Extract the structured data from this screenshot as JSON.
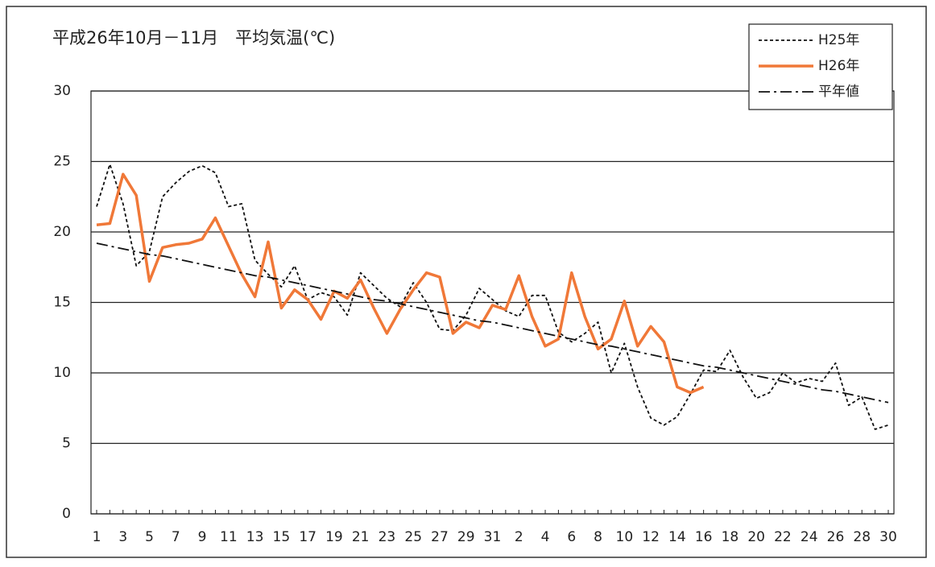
{
  "chart_data": {
    "type": "line",
    "title": "平成26年10月－11月　平均気温(℃)",
    "categories": [
      "1",
      null,
      "3",
      null,
      "5",
      null,
      "7",
      null,
      "9",
      null,
      "11",
      null,
      "13",
      null,
      "15",
      null,
      "17",
      null,
      "19",
      null,
      "21",
      null,
      "23",
      null,
      "25",
      null,
      "27",
      null,
      "29",
      null,
      "31",
      null,
      "2",
      null,
      "4",
      null,
      "6",
      null,
      "8",
      null,
      "10",
      null,
      "12",
      null,
      "14",
      null,
      "16",
      null,
      "18",
      null,
      "20",
      null,
      "22",
      null,
      "24",
      null,
      "26",
      null,
      "28",
      null,
      "30"
    ],
    "series": [
      {
        "name": "H25年",
        "color": "#111111",
        "dash": "dashed",
        "values": [
          21.8,
          24.8,
          22.0,
          17.6,
          18.6,
          22.5,
          23.5,
          24.3,
          24.7,
          24.2,
          21.8,
          22.0,
          18.0,
          17.0,
          16.1,
          17.6,
          15.2,
          15.7,
          15.4,
          14.1,
          17.1,
          16.2,
          15.3,
          14.7,
          16.4,
          15.0,
          13.1,
          13.0,
          14.1,
          16.0,
          15.2,
          14.4,
          14.0,
          15.5,
          15.5,
          12.9,
          12.2,
          12.8,
          13.6,
          10.0,
          12.1,
          9.0,
          6.8,
          6.3,
          6.9,
          8.5,
          10.2,
          10.1,
          11.6,
          9.7,
          8.2,
          8.6,
          10.0,
          9.3,
          9.6,
          9.4,
          10.7,
          7.7,
          8.3,
          6.0,
          6.3
        ]
      },
      {
        "name": "H26年",
        "color": "#f07838",
        "dash": "solid",
        "values": [
          20.5,
          20.6,
          24.1,
          22.6,
          16.5,
          18.9,
          19.1,
          19.2,
          19.5,
          21.0,
          19.0,
          17.0,
          15.4,
          19.3,
          14.6,
          15.9,
          15.2,
          13.8,
          15.8,
          15.3,
          16.6,
          14.6,
          12.8,
          14.5,
          15.9,
          17.1,
          16.8,
          12.8,
          13.6,
          13.2,
          14.8,
          14.5,
          16.9,
          14.0,
          11.9,
          12.4,
          17.1,
          14.0,
          11.7,
          12.4,
          15.1,
          11.9,
          13.3,
          12.2,
          9.0,
          8.6,
          9.0,
          null,
          null,
          null,
          null,
          null,
          null,
          null,
          null,
          null,
          null,
          null,
          null,
          null,
          null
        ]
      },
      {
        "name": "平年値",
        "color": "#111111",
        "dash": "dashdot",
        "values": [
          19.2,
          19.0,
          18.8,
          18.6,
          18.4,
          18.3,
          18.1,
          17.9,
          17.7,
          17.5,
          17.3,
          17.1,
          16.9,
          16.8,
          16.6,
          16.4,
          16.2,
          16.0,
          15.8,
          15.6,
          15.4,
          15.2,
          15.1,
          14.9,
          14.7,
          14.5,
          14.3,
          14.1,
          13.9,
          13.7,
          13.6,
          13.4,
          13.2,
          13.0,
          12.8,
          12.6,
          12.4,
          12.2,
          12.0,
          11.9,
          11.7,
          11.5,
          11.3,
          11.1,
          10.9,
          10.7,
          10.5,
          10.4,
          10.2,
          10.0,
          9.8,
          9.6,
          9.4,
          9.2,
          9.0,
          8.8,
          8.7,
          8.5,
          8.3,
          8.1,
          7.9
        ]
      }
    ],
    "ylim": [
      0,
      30
    ],
    "yticks": [
      0,
      5,
      10,
      15,
      20,
      25,
      30
    ],
    "grid": true,
    "legend": "top-right"
  }
}
